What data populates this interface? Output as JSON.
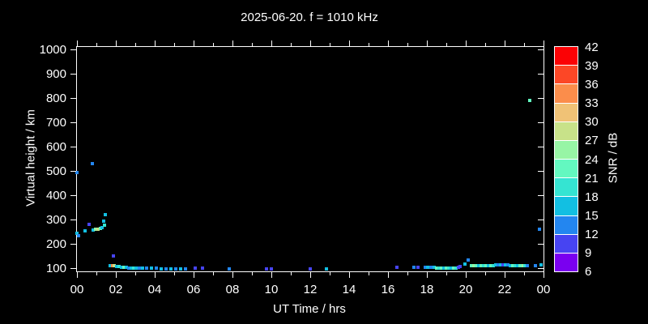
{
  "title": "2025-06-20. f = 1010 kHz",
  "chart_data": {
    "type": "scatter",
    "title": "2025-06-20. f = 1010 kHz",
    "xlabel": "UT Time / hrs",
    "ylabel": "Virtual height / km",
    "xlim_hours": [
      0,
      24
    ],
    "ylim_km": [
      88,
      1009
    ],
    "x_tick_hours": [
      0,
      2,
      4,
      6,
      8,
      10,
      12,
      14,
      16,
      18,
      20,
      22,
      24
    ],
    "x_tick_labels": [
      "00",
      "02",
      "04",
      "06",
      "08",
      "10",
      "12",
      "14",
      "16",
      "18",
      "20",
      "22",
      "00"
    ],
    "x_minor_tick_step_hours": 1,
    "y_tick_km": [
      100,
      200,
      300,
      400,
      500,
      600,
      700,
      800,
      900,
      1000
    ],
    "y_tick_labels": [
      "100",
      "200",
      "300",
      "400",
      "500",
      "600",
      "700",
      "800",
      "900",
      "1000"
    ],
    "grid": "off",
    "background_color": "#000000",
    "axis_color": "#ffffff",
    "text_color": "#ffffff",
    "point_format": "[ut_hours, virtual_height_km, snr_color_hex]",
    "points": [
      [
        0.02,
        495,
        "#2386f0"
      ],
      [
        0.79,
        530,
        "#2386f0"
      ],
      [
        0.02,
        245,
        "#12bfe2"
      ],
      [
        0.08,
        234,
        "#2386f0"
      ],
      [
        0.42,
        254,
        "#12bfe2"
      ],
      [
        0.63,
        281,
        "#4744f2"
      ],
      [
        0.83,
        258,
        "#12bfe2"
      ],
      [
        0.96,
        261,
        "#97f5a5"
      ],
      [
        1.08,
        261,
        "#c8e289"
      ],
      [
        1.21,
        264,
        "#63f8c0"
      ],
      [
        1.29,
        268,
        "#12bfe2"
      ],
      [
        1.37,
        295,
        "#12bfe2"
      ],
      [
        1.42,
        278,
        "#35e4d2"
      ],
      [
        1.46,
        322,
        "#12bfe2"
      ],
      [
        1.87,
        151,
        "#4744f2"
      ],
      [
        1.71,
        111,
        "#12bfe2"
      ],
      [
        1.83,
        111,
        "#fb8d4b"
      ],
      [
        1.92,
        110,
        "#c8e289"
      ],
      [
        2.04,
        108,
        "#12bfe2"
      ],
      [
        2.17,
        108,
        "#35e4d2"
      ],
      [
        2.29,
        105,
        "#12bfe2"
      ],
      [
        2.42,
        105,
        "#63f8c0"
      ],
      [
        2.54,
        104,
        "#12bfe2"
      ],
      [
        2.67,
        102,
        "#2386f0"
      ],
      [
        2.79,
        102,
        "#12bfe2"
      ],
      [
        2.92,
        102,
        "#35e4d2"
      ],
      [
        3.04,
        101,
        "#12bfe2"
      ],
      [
        3.21,
        101,
        "#2386f0"
      ],
      [
        3.37,
        101,
        "#12bfe2"
      ],
      [
        3.58,
        101,
        "#2386f0"
      ],
      [
        3.83,
        101,
        "#12bfe2"
      ],
      [
        4.08,
        100,
        "#2386f0"
      ],
      [
        4.33,
        99,
        "#12bfe2"
      ],
      [
        4.58,
        99,
        "#2386f0"
      ],
      [
        4.83,
        99,
        "#12bfe2"
      ],
      [
        5.08,
        99,
        "#2386f0"
      ],
      [
        5.33,
        99,
        "#12bfe2"
      ],
      [
        5.58,
        99,
        "#2386f0"
      ],
      [
        6.08,
        101,
        "#4744f2"
      ],
      [
        6.46,
        101,
        "#4744f2"
      ],
      [
        7.83,
        99,
        "#2386f0"
      ],
      [
        9.75,
        99,
        "#4744f2"
      ],
      [
        10.0,
        99,
        "#4744f2"
      ],
      [
        12.0,
        99,
        "#4744f2"
      ],
      [
        12.83,
        97,
        "#12bfe2"
      ],
      [
        16.46,
        104,
        "#4744f2"
      ],
      [
        17.33,
        104,
        "#2386f0"
      ],
      [
        17.54,
        104,
        "#4744f2"
      ],
      [
        17.92,
        104,
        "#2386f0"
      ],
      [
        18.04,
        104,
        "#12bfe2"
      ],
      [
        18.21,
        104,
        "#2386f0"
      ],
      [
        18.37,
        104,
        "#12bfe2"
      ],
      [
        18.5,
        102,
        "#63f8c0"
      ],
      [
        18.62,
        102,
        "#35e4d2"
      ],
      [
        18.75,
        102,
        "#63f8c0"
      ],
      [
        18.87,
        102,
        "#12bfe2"
      ],
      [
        19.0,
        102,
        "#63f8c0"
      ],
      [
        19.12,
        102,
        "#35e4d2"
      ],
      [
        19.25,
        102,
        "#12bfe2"
      ],
      [
        19.37,
        102,
        "#63f8c0"
      ],
      [
        19.5,
        102,
        "#35e4d2"
      ],
      [
        19.62,
        104,
        "#4744f2"
      ],
      [
        19.71,
        108,
        "#4744f2"
      ],
      [
        19.96,
        118,
        "#12bfe2"
      ],
      [
        20.12,
        134,
        "#2386f0"
      ],
      [
        20.3,
        111,
        "#63f8c0"
      ],
      [
        20.42,
        111,
        "#97f5a5"
      ],
      [
        20.54,
        111,
        "#63f8c0"
      ],
      [
        20.67,
        111,
        "#12bfe2"
      ],
      [
        20.79,
        111,
        "#63f8c0"
      ],
      [
        20.92,
        111,
        "#35e4d2"
      ],
      [
        21.04,
        111,
        "#63f8c0"
      ],
      [
        21.17,
        111,
        "#12bfe2"
      ],
      [
        21.29,
        111,
        "#63f8c0"
      ],
      [
        21.42,
        111,
        "#35e4d2"
      ],
      [
        21.54,
        114,
        "#12bfe2"
      ],
      [
        21.67,
        114,
        "#2386f0"
      ],
      [
        21.79,
        114,
        "#12bfe2"
      ],
      [
        21.92,
        114,
        "#4744f2"
      ],
      [
        22.04,
        114,
        "#12bfe2"
      ],
      [
        22.17,
        114,
        "#2386f0"
      ],
      [
        22.29,
        111,
        "#12bfe2"
      ],
      [
        22.42,
        111,
        "#63f8c0"
      ],
      [
        22.54,
        111,
        "#35e4d2"
      ],
      [
        22.67,
        111,
        "#12bfe2"
      ],
      [
        22.79,
        111,
        "#63f8c0"
      ],
      [
        22.96,
        111,
        "#97f5a5"
      ],
      [
        23.04,
        111,
        "#35e4d2"
      ],
      [
        23.17,
        111,
        "#2386f0"
      ],
      [
        23.58,
        111,
        "#2386f0"
      ],
      [
        23.87,
        114,
        "#12bfe2"
      ],
      [
        23.29,
        790,
        "#63f8c0"
      ],
      [
        23.79,
        261,
        "#2386f0"
      ]
    ],
    "colorbar": {
      "label": "SNR / dB",
      "min_db": 6,
      "max_db": 42,
      "step_db": 3,
      "tick_labels_top_to_bottom": [
        "42",
        "39",
        "36",
        "33",
        "30",
        "27",
        "24",
        "21",
        "18",
        "15",
        "12",
        "9",
        "6"
      ],
      "segment_colors_top_to_bottom": [
        "#fb0205",
        "#fc4726",
        "#fb8d4b",
        "#f0c276",
        "#c8e289",
        "#97f5a5",
        "#63f8c0",
        "#35e4d2",
        "#12bfe2",
        "#2386f0",
        "#4744f2",
        "#7a00f0"
      ]
    }
  }
}
